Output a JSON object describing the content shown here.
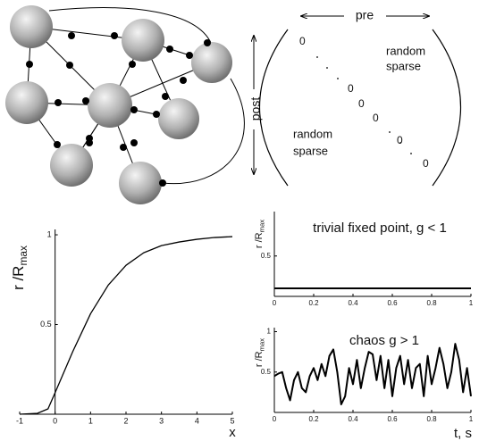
{
  "matrix": {
    "top_label": "pre",
    "side_label": "post",
    "diagonal": [
      "0",
      "0",
      "0",
      "0",
      "0",
      "0"
    ],
    "upper_label": [
      "random",
      "sparse"
    ],
    "lower_label": [
      "random",
      "sparse"
    ]
  },
  "chart_data": [
    {
      "type": "line",
      "ylabel": "r /R",
      "ylabel_sub": "max",
      "xlabel": "x",
      "x": [
        -1,
        -0.5,
        -0.2,
        0,
        0.5,
        1,
        1.5,
        2,
        2.5,
        3,
        3.5,
        4,
        4.5,
        5
      ],
      "values": [
        0,
        0.005,
        0.03,
        0.12,
        0.35,
        0.56,
        0.72,
        0.83,
        0.9,
        0.94,
        0.96,
        0.975,
        0.985,
        0.99
      ],
      "color": "#000000",
      "xlim": [
        -1,
        5
      ],
      "ylim": [
        0,
        1.03
      ],
      "xticks": [
        -1,
        0,
        1,
        2,
        3,
        4,
        5
      ],
      "yticks": [
        0.5,
        1
      ]
    },
    {
      "type": "line",
      "title": "trivial fixed point, g < 1",
      "ylabel": "r /R",
      "ylabel_sub": "max",
      "x": [
        0,
        1
      ],
      "values": [
        0.1,
        0.1
      ],
      "color": "#000000",
      "xlim": [
        0,
        1
      ],
      "ylim": [
        0,
        1.05
      ],
      "xticks": [
        0,
        0.2,
        0.4,
        0.6,
        0.8,
        1
      ],
      "yticks": [
        0.5
      ]
    },
    {
      "type": "line",
      "title": "chaos g > 1",
      "ylabel": "r /R",
      "ylabel_sub": "max",
      "xlabel": "t, s",
      "x": [
        0,
        0.02,
        0.04,
        0.06,
        0.08,
        0.1,
        0.12,
        0.14,
        0.16,
        0.18,
        0.2,
        0.22,
        0.24,
        0.26,
        0.28,
        0.3,
        0.32,
        0.34,
        0.36,
        0.38,
        0.4,
        0.42,
        0.44,
        0.46,
        0.48,
        0.5,
        0.52,
        0.54,
        0.56,
        0.58,
        0.6,
        0.62,
        0.64,
        0.66,
        0.68,
        0.7,
        0.72,
        0.74,
        0.76,
        0.78,
        0.8,
        0.82,
        0.84,
        0.86,
        0.88,
        0.9,
        0.92,
        0.94,
        0.96,
        0.98,
        1
      ],
      "values": [
        0.45,
        0.48,
        0.5,
        0.3,
        0.15,
        0.4,
        0.5,
        0.3,
        0.25,
        0.45,
        0.55,
        0.4,
        0.6,
        0.45,
        0.7,
        0.78,
        0.5,
        0.1,
        0.2,
        0.55,
        0.35,
        0.65,
        0.3,
        0.55,
        0.75,
        0.72,
        0.4,
        0.7,
        0.3,
        0.65,
        0.2,
        0.55,
        0.7,
        0.35,
        0.65,
        0.3,
        0.55,
        0.6,
        0.2,
        0.7,
        0.35,
        0.55,
        0.8,
        0.6,
        0.3,
        0.5,
        0.85,
        0.65,
        0.25,
        0.55,
        0.2
      ],
      "color": "#000000",
      "xlim": [
        0,
        1
      ],
      "ylim": [
        0,
        1.05
      ],
      "xticks": [
        0,
        0.2,
        0.4,
        0.6,
        0.8,
        1
      ],
      "yticks": [
        0.5,
        1
      ]
    }
  ]
}
